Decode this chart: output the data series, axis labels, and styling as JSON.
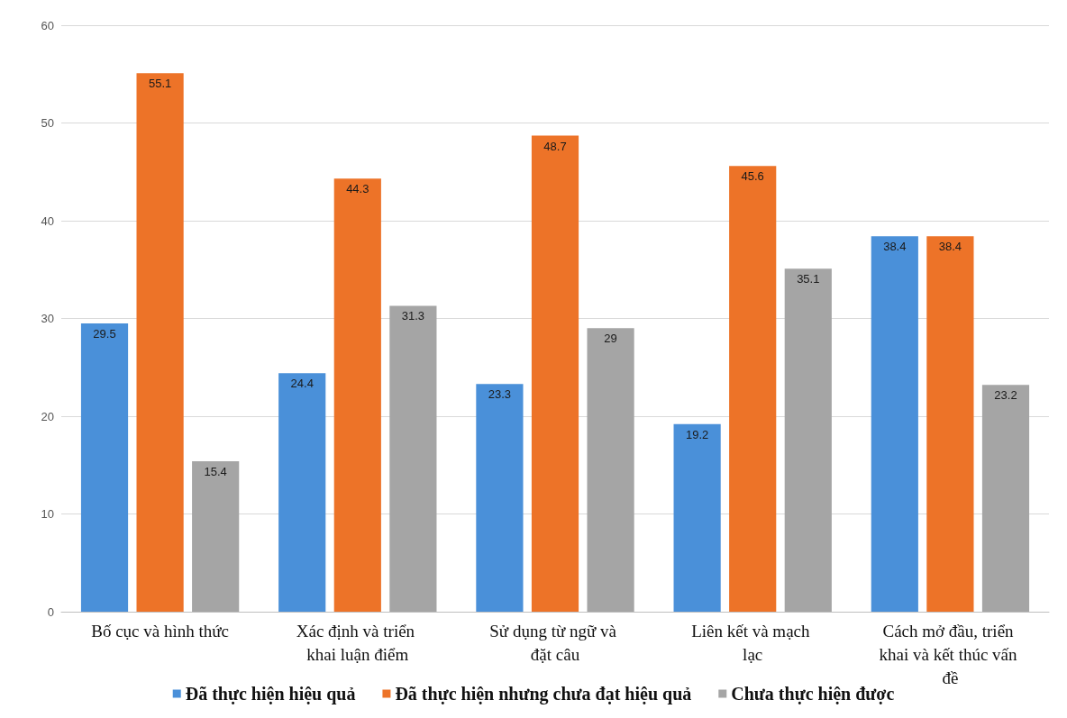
{
  "chart_data": {
    "type": "bar",
    "categories": [
      "Bố cục và hình thức",
      "Xác định và triển khai luận điểm",
      "Sử dụng từ ngữ và đặt câu",
      "Liên kết và mạch lạc",
      "Cách mở đầu, triển khai và kết thúc vấn đề"
    ],
    "series": [
      {
        "name": "Đã thực hiện hiệu quả",
        "color": "#4a90d9",
        "values": [
          29.5,
          24.4,
          23.3,
          19.2,
          38.4
        ]
      },
      {
        "name": "Đã thực hiện nhưng chưa đạt hiệu quả",
        "color": "#ed7328",
        "values": [
          55.1,
          44.3,
          48.7,
          45.6,
          38.4
        ]
      },
      {
        "name": "Chưa thực hiện được",
        "color": "#a5a5a5",
        "values": [
          15.4,
          31.3,
          29,
          35.1,
          23.2
        ]
      }
    ],
    "ylim": [
      0,
      60
    ],
    "yticks": [
      0,
      10,
      20,
      30,
      40,
      50,
      60
    ],
    "grid": "y",
    "legend": "bottom",
    "data_labels": true
  }
}
